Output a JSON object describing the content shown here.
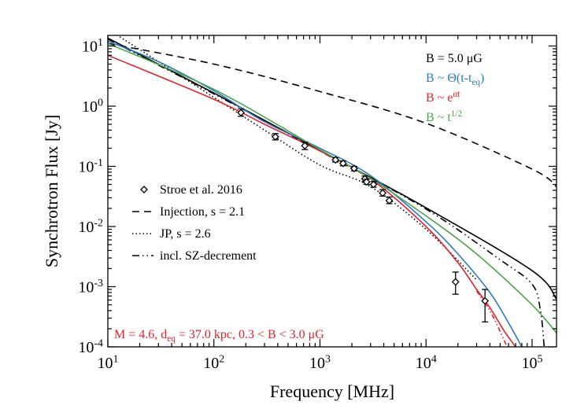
{
  "chart_data": {
    "type": "line",
    "xlabel": "Frequency [MHz]",
    "ylabel": "Synchrotron Flux [Jy]",
    "xscale": "log",
    "yscale": "log",
    "xlim": [
      10,
      170000
    ],
    "ylim": [
      0.0001,
      15
    ],
    "x_ticks": [
      {
        "value": 10,
        "base": "10",
        "exp": "1"
      },
      {
        "value": 100,
        "base": "10",
        "exp": "2"
      },
      {
        "value": 1000,
        "base": "10",
        "exp": "3"
      },
      {
        "value": 10000,
        "base": "10",
        "exp": "4"
      },
      {
        "value": 100000,
        "base": "10",
        "exp": "5"
      }
    ],
    "y_ticks": [
      {
        "value": 10,
        "base": "10",
        "exp": "1"
      },
      {
        "value": 1,
        "base": "10",
        "exp": "0"
      },
      {
        "value": 0.1,
        "base": "10",
        "exp": "-1"
      },
      {
        "value": 0.01,
        "base": "10",
        "exp": "-2"
      },
      {
        "value": 0.001,
        "base": "10",
        "exp": "-3"
      },
      {
        "value": 0.0001,
        "base": "10",
        "exp": "-4"
      }
    ],
    "observations": {
      "name": "Stroe et al. 2016",
      "points": [
        {
          "x": 180,
          "y": 0.78,
          "ylo": 0.68,
          "yhi": 0.9
        },
        {
          "x": 380,
          "y": 0.31,
          "ylo": 0.275,
          "yhi": 0.35
        },
        {
          "x": 720,
          "y": 0.22,
          "ylo": 0.19,
          "yhi": 0.25
        },
        {
          "x": 1400,
          "y": 0.128,
          "ylo": 0.118,
          "yhi": 0.139
        },
        {
          "x": 1650,
          "y": 0.112,
          "ylo": 0.102,
          "yhi": 0.123
        },
        {
          "x": 2100,
          "y": 0.092,
          "ylo": 0.084,
          "yhi": 0.1
        },
        {
          "x": 2650,
          "y": 0.062,
          "ylo": 0.056,
          "yhi": 0.069
        },
        {
          "x": 2750,
          "y": 0.055,
          "ylo": 0.05,
          "yhi": 0.061
        },
        {
          "x": 3200,
          "y": 0.05,
          "ylo": 0.045,
          "yhi": 0.056
        },
        {
          "x": 3900,
          "y": 0.036,
          "ylo": 0.032,
          "yhi": 0.041
        },
        {
          "x": 4500,
          "y": 0.027,
          "ylo": 0.024,
          "yhi": 0.031
        },
        {
          "x": 19000,
          "y": 0.0012,
          "ylo": 0.00075,
          "yhi": 0.00175
        },
        {
          "x": 36000,
          "y": 0.00058,
          "ylo": 0.00026,
          "yhi": 0.0009
        }
      ]
    },
    "series": [
      {
        "name": "Injection, s = 2.1",
        "style": "dashed",
        "color": "#000000",
        "x": [
          10,
          100,
          1000,
          10000,
          100000,
          170000
        ],
        "y": [
          11.0,
          5.0,
          1.75,
          0.52,
          0.09,
          0.046
        ]
      },
      {
        "name": "JP, s = 2.6",
        "style": "dotted",
        "color": "#000000",
        "x": [
          10,
          30,
          100,
          300,
          1000,
          3000,
          10000,
          30000
        ],
        "y": [
          19.0,
          5.5,
          1.4,
          0.4,
          0.105,
          0.046,
          0.009,
          0.0013
        ]
      },
      {
        "name": "incl. SZ-decrement",
        "style": "dashdot",
        "color": "#000000",
        "x": [
          10,
          100,
          1000,
          10000,
          50000,
          100000,
          120000,
          130000
        ],
        "y": [
          13.0,
          1.6,
          0.18,
          0.0195,
          0.0028,
          0.0011,
          0.0004,
          0.0001
        ]
      },
      {
        "name": "B = 5.0 μG",
        "style": "solid",
        "color": "#000000",
        "x": [
          10,
          100,
          1000,
          10000,
          100000,
          170000
        ],
        "y": [
          13.5,
          1.65,
          0.185,
          0.0205,
          0.00185,
          0.00062
        ]
      },
      {
        "name": "B ~ Θ(t-t_eq)",
        "style": "solid",
        "color": "#2b7bbf",
        "x": [
          10,
          30,
          100,
          300,
          1000,
          3000,
          10000,
          20000,
          40000,
          60000,
          80000
        ],
        "y": [
          12.0,
          5.5,
          1.8,
          0.55,
          0.2,
          0.07,
          0.012,
          0.0035,
          0.0008,
          0.00025,
          0.0001
        ]
      },
      {
        "name": "B ~ e^αt",
        "style": "solid",
        "color": "#e8202a",
        "x": [
          10,
          100,
          300,
          1000,
          3000,
          10000,
          20000,
          30000,
          40000,
          55000,
          70000
        ],
        "y": [
          7.0,
          1.3,
          0.5,
          0.18,
          0.062,
          0.01,
          0.0025,
          0.0009,
          0.00045,
          0.00018,
          0.0001
        ]
      },
      {
        "name": "B ~ t^1/2",
        "style": "solid",
        "color": "#4ca64c",
        "x": [
          10,
          100,
          1000,
          3000,
          10000,
          30000,
          100000,
          170000
        ],
        "y": [
          11.0,
          1.9,
          0.19,
          0.063,
          0.015,
          0.0035,
          0.0005,
          0.00017
        ]
      }
    ],
    "annotation_red_dotted": {
      "color": "#e8202a",
      "x": [
        30000,
        40000,
        50000,
        58000
      ],
      "y": [
        0.00085,
        0.0004,
        0.00018,
        0.0001
      ]
    },
    "legend_left": {
      "placement": "center-left",
      "items": [
        {
          "key": "obs",
          "label": "Stroe et al. 2016"
        },
        {
          "key": "dashed",
          "label": "Injection, s = 2.1"
        },
        {
          "key": "dotted",
          "label": "JP, s = 2.6"
        },
        {
          "key": "dashdot",
          "label": "incl. SZ-decrement"
        }
      ]
    },
    "legend_right": {
      "placement": "top-right",
      "items": [
        {
          "color": "#000000",
          "label": "B = 5.0 μG"
        },
        {
          "color": "#2b7bbf",
          "label": "B ~ Θ(t-t",
          "sub": "eq",
          "tail": ")"
        },
        {
          "color": "#e8202a",
          "label": "B ~ e",
          "sup": "αt"
        },
        {
          "color": "#4ca64c",
          "label": "B ~ t",
          "sup": "1/2"
        }
      ]
    },
    "params_annotation": {
      "color": "#e8202a",
      "parts": [
        "M = 4.6, d",
        "eq",
        " = 37.0 kpc, 0.3 < B < 3.0 μG"
      ]
    }
  }
}
